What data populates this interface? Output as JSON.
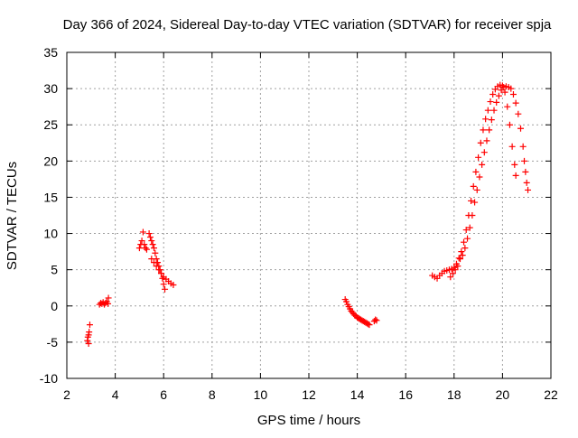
{
  "chart_data": {
    "type": "scatter",
    "title": "Day 366 of 2024, Sidereal Day-to-day VTEC variation (SDTVAR) for receiver spja",
    "xlabel": "GPS time / hours",
    "ylabel": "SDTVAR / TECUs",
    "xlim": [
      2,
      22
    ],
    "ylim": [
      -10,
      35
    ],
    "xticks": [
      2,
      4,
      6,
      8,
      10,
      12,
      14,
      16,
      18,
      20,
      22
    ],
    "yticks": [
      -10,
      -5,
      0,
      5,
      10,
      15,
      20,
      25,
      30,
      35
    ],
    "grid": true,
    "marker": "+",
    "color": "#ff0000",
    "series": [
      {
        "name": "SDTVAR",
        "points": [
          [
            2.85,
            -4.8
          ],
          [
            2.87,
            -4.3
          ],
          [
            2.9,
            -4.0
          ],
          [
            2.92,
            -3.6
          ],
          [
            2.95,
            -2.6
          ],
          [
            2.9,
            -5.2
          ],
          [
            3.35,
            0.2
          ],
          [
            3.4,
            0.4
          ],
          [
            3.45,
            0.3
          ],
          [
            3.5,
            0.5
          ],
          [
            3.55,
            0.2
          ],
          [
            3.6,
            0.4
          ],
          [
            3.65,
            0.6
          ],
          [
            3.7,
            0.3
          ],
          [
            3.72,
            1.1
          ],
          [
            5.0,
            8.0
          ],
          [
            5.05,
            8.5
          ],
          [
            5.1,
            9.0
          ],
          [
            5.15,
            10.2
          ],
          [
            5.2,
            8.5
          ],
          [
            5.25,
            8.0
          ],
          [
            5.3,
            7.8
          ],
          [
            5.4,
            10.0
          ],
          [
            5.45,
            9.5
          ],
          [
            5.5,
            9.0
          ],
          [
            5.55,
            8.5
          ],
          [
            5.6,
            8.0
          ],
          [
            5.65,
            7.3
          ],
          [
            5.7,
            6.5
          ],
          [
            5.75,
            6.0
          ],
          [
            5.8,
            5.5
          ],
          [
            5.85,
            5.0
          ],
          [
            5.9,
            4.5
          ],
          [
            5.95,
            3.8
          ],
          [
            6.0,
            3.0
          ],
          [
            6.05,
            2.3
          ],
          [
            5.5,
            6.5
          ],
          [
            5.6,
            6.0
          ],
          [
            5.7,
            5.5
          ],
          [
            5.8,
            5.0
          ],
          [
            5.9,
            4.5
          ],
          [
            6.0,
            4.0
          ],
          [
            6.1,
            3.7
          ],
          [
            6.2,
            3.4
          ],
          [
            6.3,
            3.1
          ],
          [
            6.4,
            2.9
          ],
          [
            13.5,
            0.9
          ],
          [
            13.55,
            0.6
          ],
          [
            13.6,
            0.2
          ],
          [
            13.65,
            -0.1
          ],
          [
            13.7,
            -0.4
          ],
          [
            13.75,
            -0.7
          ],
          [
            13.8,
            -0.9
          ],
          [
            13.85,
            -1.1
          ],
          [
            13.9,
            -1.3
          ],
          [
            13.95,
            -1.4
          ],
          [
            14.0,
            -1.6
          ],
          [
            14.05,
            -1.7
          ],
          [
            14.1,
            -1.8
          ],
          [
            14.15,
            -1.9
          ],
          [
            14.2,
            -2.0
          ],
          [
            14.25,
            -2.1
          ],
          [
            14.3,
            -2.2
          ],
          [
            14.35,
            -2.3
          ],
          [
            14.4,
            -2.4
          ],
          [
            14.45,
            -2.5
          ],
          [
            14.5,
            -2.6
          ],
          [
            14.7,
            -2.1
          ],
          [
            14.75,
            -1.9
          ],
          [
            14.8,
            -2.0
          ],
          [
            17.1,
            4.2
          ],
          [
            17.2,
            4.0
          ],
          [
            17.3,
            3.8
          ],
          [
            17.4,
            4.2
          ],
          [
            17.5,
            4.5
          ],
          [
            17.6,
            4.8
          ],
          [
            17.7,
            4.9
          ],
          [
            17.8,
            5.0
          ],
          [
            17.9,
            5.1
          ],
          [
            18.0,
            5.3
          ],
          [
            17.85,
            4.0
          ],
          [
            17.95,
            4.5
          ],
          [
            18.05,
            5.0
          ],
          [
            18.15,
            5.5
          ],
          [
            18.25,
            6.5
          ],
          [
            18.1,
            5.8
          ],
          [
            18.2,
            6.6
          ],
          [
            18.3,
            7.5
          ],
          [
            18.4,
            8.8
          ],
          [
            18.5,
            10.5
          ],
          [
            18.6,
            12.5
          ],
          [
            18.7,
            14.5
          ],
          [
            18.8,
            16.5
          ],
          [
            18.9,
            18.5
          ],
          [
            19.0,
            20.5
          ],
          [
            19.1,
            22.5
          ],
          [
            19.2,
            24.3
          ],
          [
            19.3,
            25.8
          ],
          [
            19.4,
            27.0
          ],
          [
            19.5,
            28.2
          ],
          [
            19.6,
            29.2
          ],
          [
            19.7,
            29.9
          ],
          [
            19.8,
            30.3
          ],
          [
            19.9,
            30.5
          ],
          [
            18.35,
            7.0
          ],
          [
            18.45,
            8.0
          ],
          [
            18.55,
            9.3
          ],
          [
            18.65,
            10.8
          ],
          [
            18.75,
            12.5
          ],
          [
            18.85,
            14.3
          ],
          [
            18.95,
            16.0
          ],
          [
            19.05,
            17.8
          ],
          [
            19.15,
            19.5
          ],
          [
            19.25,
            21.2
          ],
          [
            19.35,
            22.8
          ],
          [
            19.45,
            24.3
          ],
          [
            19.55,
            25.7
          ],
          [
            19.65,
            27.0
          ],
          [
            19.75,
            28.1
          ],
          [
            19.85,
            29.0
          ],
          [
            19.95,
            29.8
          ],
          [
            20.05,
            30.2
          ],
          [
            20.15,
            30.3
          ],
          [
            20.25,
            30.2
          ],
          [
            20.0,
            30.4
          ],
          [
            20.1,
            29.5
          ],
          [
            20.2,
            27.5
          ],
          [
            20.3,
            25.0
          ],
          [
            20.4,
            22.0
          ],
          [
            20.5,
            19.5
          ],
          [
            20.55,
            18.0
          ],
          [
            20.35,
            30.0
          ],
          [
            20.45,
            29.2
          ],
          [
            20.55,
            28.0
          ],
          [
            20.65,
            26.5
          ],
          [
            20.75,
            24.5
          ],
          [
            20.85,
            22.0
          ],
          [
            20.9,
            20.0
          ],
          [
            20.95,
            18.5
          ],
          [
            21.0,
            17.0
          ],
          [
            21.05,
            16.0
          ]
        ]
      }
    ]
  }
}
